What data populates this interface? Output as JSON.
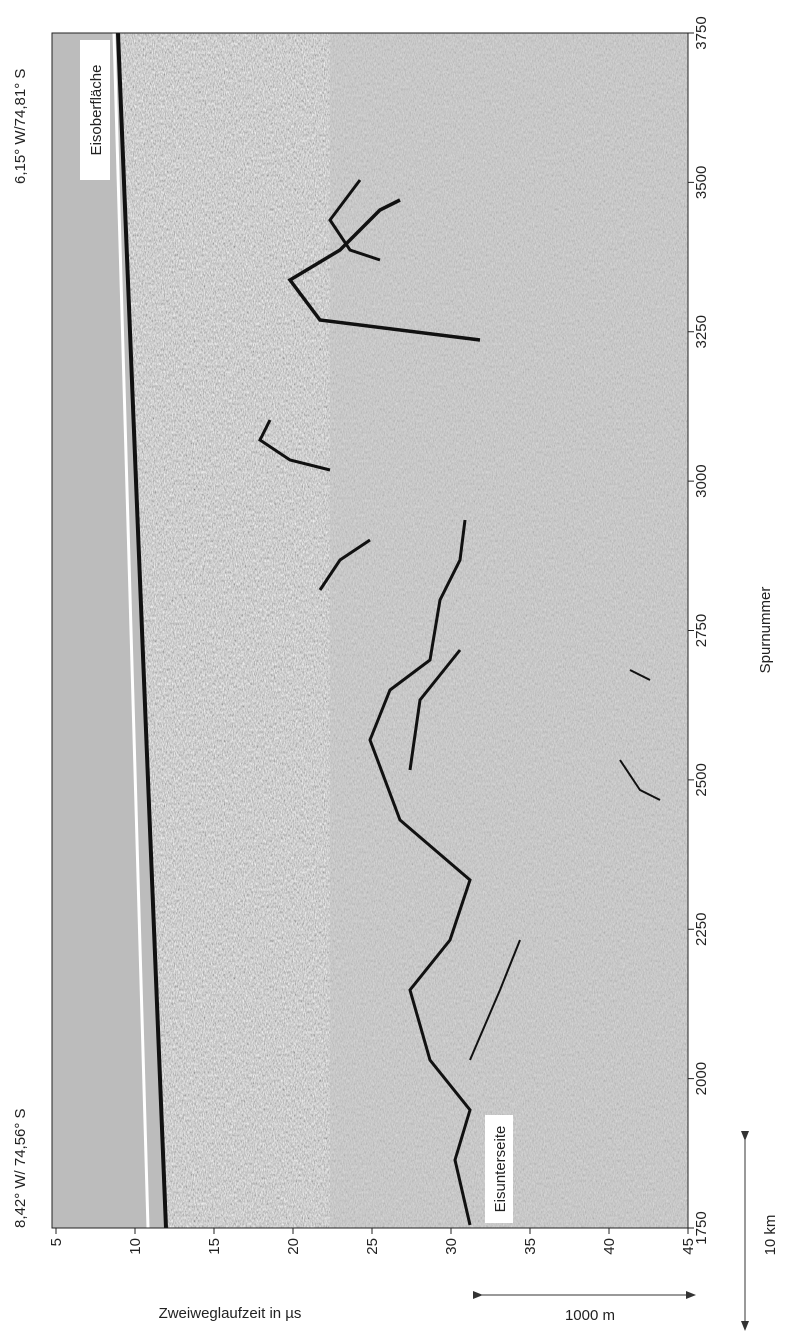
{
  "chart_data": {
    "type": "radargram",
    "xlabel": "Zweiweglaufzeit in µs",
    "ylabel": "Spurnummer",
    "xlim": [
      5,
      45
    ],
    "xticks": [
      5,
      10,
      15,
      20,
      25,
      30,
      35,
      40,
      45
    ],
    "ylim": [
      1750,
      3750
    ],
    "yticks": [
      1750,
      2000,
      2250,
      2500,
      2750,
      3000,
      3250,
      3500,
      3750
    ],
    "annotations": [
      "Eisoberfläche",
      "Eisunterseite"
    ],
    "corner_labels": [
      "8,42° W/ 74,56° S",
      "6,15° W/74,81° S"
    ],
    "scale_bars": [
      "1000 m",
      "10 km"
    ]
  }
}
